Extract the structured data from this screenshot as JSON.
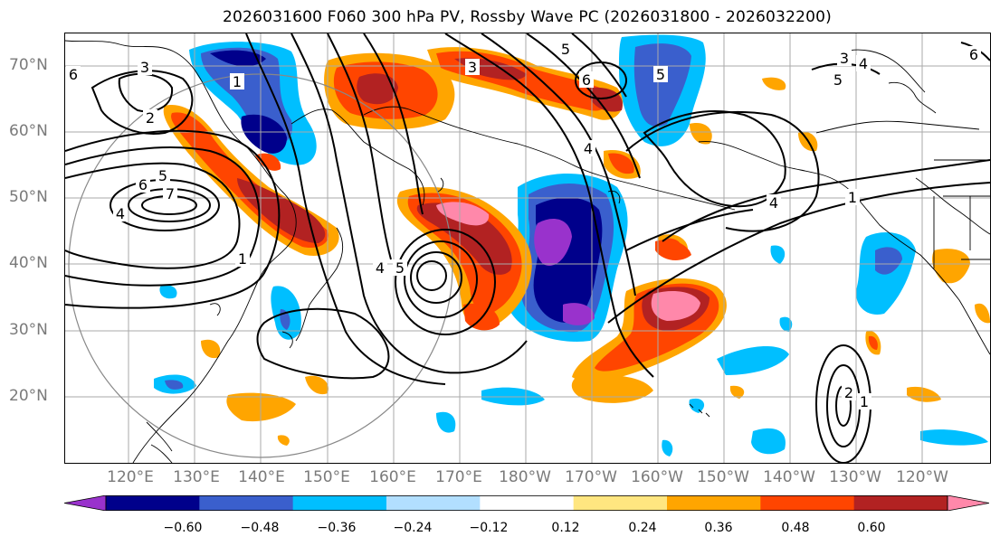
{
  "title": "2026031600 F060 300 hPa PV, Rossby Wave PC (2026031800 - 2026032200)",
  "lat_labels": [
    "70°N",
    "60°N",
    "50°N",
    "40°N",
    "30°N",
    "20°N"
  ],
  "lon_labels": [
    "120°E",
    "130°E",
    "140°E",
    "150°E",
    "160°E",
    "170°E",
    "180°W",
    "170°W",
    "160°W",
    "150°W",
    "140°W",
    "130°W",
    "120°W"
  ],
  "colorbar": {
    "colors": [
      "#9932cc",
      "#00008b",
      "#3a5fcd",
      "#00bfff",
      "#b2dfff",
      "#ffffff",
      "#ffe680",
      "#ffa500",
      "#ff4500",
      "#b22222",
      "#ff88aa"
    ],
    "ticks": [
      "−0.60",
      "−0.48",
      "−0.36",
      "−0.24",
      "−0.12",
      "0.12",
      "0.24",
      "0.36",
      "0.48",
      "0.60"
    ],
    "extend": "both"
  },
  "contour_labels": [
    "6",
    "3",
    "2",
    "5",
    "6",
    "7",
    "4",
    "1",
    "4",
    "5",
    "3",
    "6",
    "4",
    "5",
    "3",
    "4",
    "5",
    "6",
    "5",
    "4",
    "1",
    "1",
    "2",
    "1"
  ],
  "colors": {
    "contour": "#000000",
    "grid": "#aaaaaa",
    "tick_label": "#7a7a7a",
    "range_circle": "#888888"
  }
}
